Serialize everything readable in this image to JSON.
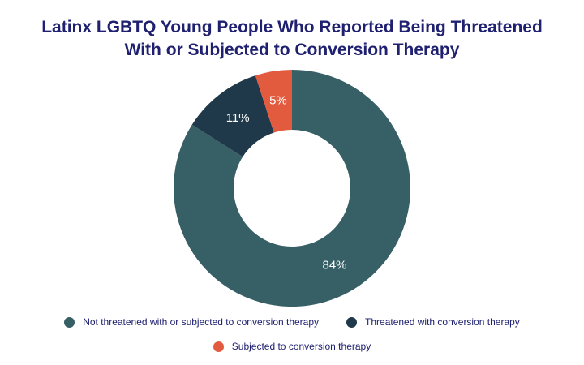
{
  "chart_data": {
    "type": "pie",
    "title": "Latinx LGBTQ Young People Who Reported Being Threatened With or Subjected to Conversion Therapy",
    "categories": [
      "Not threatened with or subjected to conversion therapy",
      "Threatened with conversion therapy",
      "Subjected to conversion therapy"
    ],
    "values": [
      84,
      11,
      5
    ],
    "value_labels": [
      "84%",
      "11%",
      "5%"
    ],
    "colors": [
      "#375f66",
      "#20394a",
      "#e35b3e"
    ],
    "donut": true,
    "legend": "bottom"
  }
}
